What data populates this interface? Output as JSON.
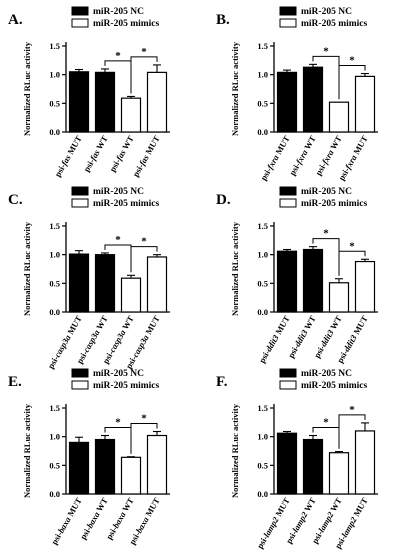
{
  "chart_data": [
    {
      "type": "bar",
      "panel_label": "A.",
      "ylabel": "Normalized RLuc activity",
      "ylim": [
        0,
        1.5
      ],
      "yticks": [
        "0.0",
        "0.5",
        "1.0",
        "1.5"
      ],
      "legend": [
        {
          "label": "miR-205 NC",
          "color": "#000000"
        },
        {
          "label": "miR-205 mimics",
          "color": "#ffffff"
        }
      ],
      "categories": [
        {
          "prefix": "psi-",
          "gene": "fas",
          "suffix": " MUT"
        },
        {
          "prefix": "psi-",
          "gene": "fas",
          "suffix": " WT"
        },
        {
          "prefix": "psi-",
          "gene": "fas",
          "suffix": " WT"
        },
        {
          "prefix": "psi-",
          "gene": "fas",
          "suffix": " MUT"
        }
      ],
      "values": [
        1.05,
        1.04,
        0.59,
        1.04
      ],
      "errors": [
        0.04,
        0.06,
        0.03,
        0.13
      ],
      "fills": [
        "#000000",
        "#000000",
        "#ffffff",
        "#ffffff"
      ],
      "significance": [
        {
          "from": 1,
          "to": 2,
          "label": "*"
        },
        {
          "from": 2,
          "to": 3,
          "label": "*"
        }
      ]
    },
    {
      "type": "bar",
      "panel_label": "B.",
      "ylabel": "Normalized RLuc activity",
      "ylim": [
        0,
        1.5
      ],
      "yticks": [
        "0.0",
        "0.5",
        "1.0",
        "1.5"
      ],
      "legend": [
        {
          "label": "miR-205 NC",
          "color": "#000000"
        },
        {
          "label": "miR-205 mimics",
          "color": "#ffffff"
        }
      ],
      "categories": [
        {
          "prefix": "psi-",
          "gene": "fxra",
          "suffix": " MUT"
        },
        {
          "prefix": "psi-",
          "gene": "fxra",
          "suffix": " WT"
        },
        {
          "prefix": "psi-",
          "gene": "fxra",
          "suffix": " WT"
        },
        {
          "prefix": "psi-",
          "gene": "fxra",
          "suffix": " MUT"
        }
      ],
      "values": [
        1.04,
        1.13,
        0.52,
        0.97
      ],
      "errors": [
        0.04,
        0.05,
        0.0,
        0.05
      ],
      "fills": [
        "#000000",
        "#000000",
        "#ffffff",
        "#ffffff"
      ],
      "significance": [
        {
          "from": 1,
          "to": 2,
          "label": "*"
        },
        {
          "from": 2,
          "to": 3,
          "label": "*"
        }
      ]
    },
    {
      "type": "bar",
      "panel_label": "C.",
      "ylabel": "Normalized RLuc activity",
      "ylim": [
        0,
        1.5
      ],
      "yticks": [
        "0.0",
        "0.5",
        "1.0",
        "1.5"
      ],
      "legend": [
        {
          "label": "miR-205 NC",
          "color": "#000000"
        },
        {
          "label": "miR-205 mimics",
          "color": "#ffffff"
        }
      ],
      "categories": [
        {
          "prefix": "psi-",
          "gene": "casp3a",
          "suffix": " MUT"
        },
        {
          "prefix": "psi-",
          "gene": "casp3a",
          "suffix": " WT"
        },
        {
          "prefix": "psi-",
          "gene": "casp3a",
          "suffix": " WT"
        },
        {
          "prefix": "psi-",
          "gene": "casp3a",
          "suffix": " MUT"
        }
      ],
      "values": [
        1.01,
        1.0,
        0.59,
        0.96
      ],
      "errors": [
        0.06,
        0.03,
        0.05,
        0.04
      ],
      "fills": [
        "#000000",
        "#000000",
        "#ffffff",
        "#ffffff"
      ],
      "significance": [
        {
          "from": 1,
          "to": 2,
          "label": "*"
        },
        {
          "from": 2,
          "to": 3,
          "label": "*"
        }
      ]
    },
    {
      "type": "bar",
      "panel_label": "D.",
      "ylabel": "Normalized RLuc activity",
      "ylim": [
        0,
        1.5
      ],
      "yticks": [
        "0.0",
        "0.5",
        "1.0",
        "1.5"
      ],
      "legend": [
        {
          "label": "miR-205 NC",
          "color": "#000000"
        },
        {
          "label": "miR-205 mimics",
          "color": "#ffffff"
        }
      ],
      "categories": [
        {
          "prefix": "psi-",
          "gene": "ddit3",
          "suffix": " MUT"
        },
        {
          "prefix": "psi-",
          "gene": "ddit3",
          "suffix": " WT"
        },
        {
          "prefix": "psi-",
          "gene": "ddit3",
          "suffix": " WT"
        },
        {
          "prefix": "psi-",
          "gene": "ddit3",
          "suffix": " MUT"
        }
      ],
      "values": [
        1.06,
        1.09,
        0.51,
        0.88
      ],
      "errors": [
        0.03,
        0.05,
        0.07,
        0.04
      ],
      "fills": [
        "#000000",
        "#000000",
        "#ffffff",
        "#ffffff"
      ],
      "significance": [
        {
          "from": 1,
          "to": 2,
          "label": "*"
        },
        {
          "from": 2,
          "to": 3,
          "label": "*"
        }
      ]
    },
    {
      "type": "bar",
      "panel_label": "E.",
      "ylabel": "Normalized RLuc activity",
      "ylim": [
        0,
        1.5
      ],
      "yticks": [
        "0.0",
        "0.5",
        "1.0",
        "1.5"
      ],
      "legend": [
        {
          "label": "miR-205 NC",
          "color": "#000000"
        },
        {
          "label": "miR-205 mimics",
          "color": "#ffffff"
        }
      ],
      "categories": [
        {
          "prefix": "psi-",
          "gene": "baxa",
          "suffix": " MUT"
        },
        {
          "prefix": "psi-",
          "gene": "baxa",
          "suffix": " WT"
        },
        {
          "prefix": "psi-",
          "gene": "baxa",
          "suffix": " WT"
        },
        {
          "prefix": "psi-",
          "gene": "baxa",
          "suffix": " MUT"
        }
      ],
      "values": [
        0.9,
        0.95,
        0.64,
        1.02
      ],
      "errors": [
        0.09,
        0.07,
        0.01,
        0.07
      ],
      "fills": [
        "#000000",
        "#000000",
        "#ffffff",
        "#ffffff"
      ],
      "significance": [
        {
          "from": 1,
          "to": 2,
          "label": "*"
        },
        {
          "from": 2,
          "to": 3,
          "label": "*"
        }
      ]
    },
    {
      "type": "bar",
      "panel_label": "F.",
      "ylabel": "Normalized RLuc activity",
      "ylim": [
        0,
        1.5
      ],
      "yticks": [
        "0.0",
        "0.5",
        "1.0",
        "1.5"
      ],
      "legend": [
        {
          "label": "miR-205 NC",
          "color": "#000000"
        },
        {
          "label": "miR-205 mimics",
          "color": "#ffffff"
        }
      ],
      "categories": [
        {
          "prefix": "psi-",
          "gene": "lamp2",
          "suffix": " MUT"
        },
        {
          "prefix": "psi-",
          "gene": "lamp2",
          "suffix": " WT"
        },
        {
          "prefix": "psi-",
          "gene": "lamp2",
          "suffix": " WT"
        },
        {
          "prefix": "psi-",
          "gene": "lamp2",
          "suffix": " MUT"
        }
      ],
      "values": [
        1.06,
        0.95,
        0.72,
        1.1
      ],
      "errors": [
        0.03,
        0.07,
        0.02,
        0.14
      ],
      "fills": [
        "#000000",
        "#000000",
        "#ffffff",
        "#ffffff"
      ],
      "significance": [
        {
          "from": 1,
          "to": 2,
          "label": "*"
        },
        {
          "from": 2,
          "to": 3,
          "label": "*"
        }
      ]
    }
  ]
}
